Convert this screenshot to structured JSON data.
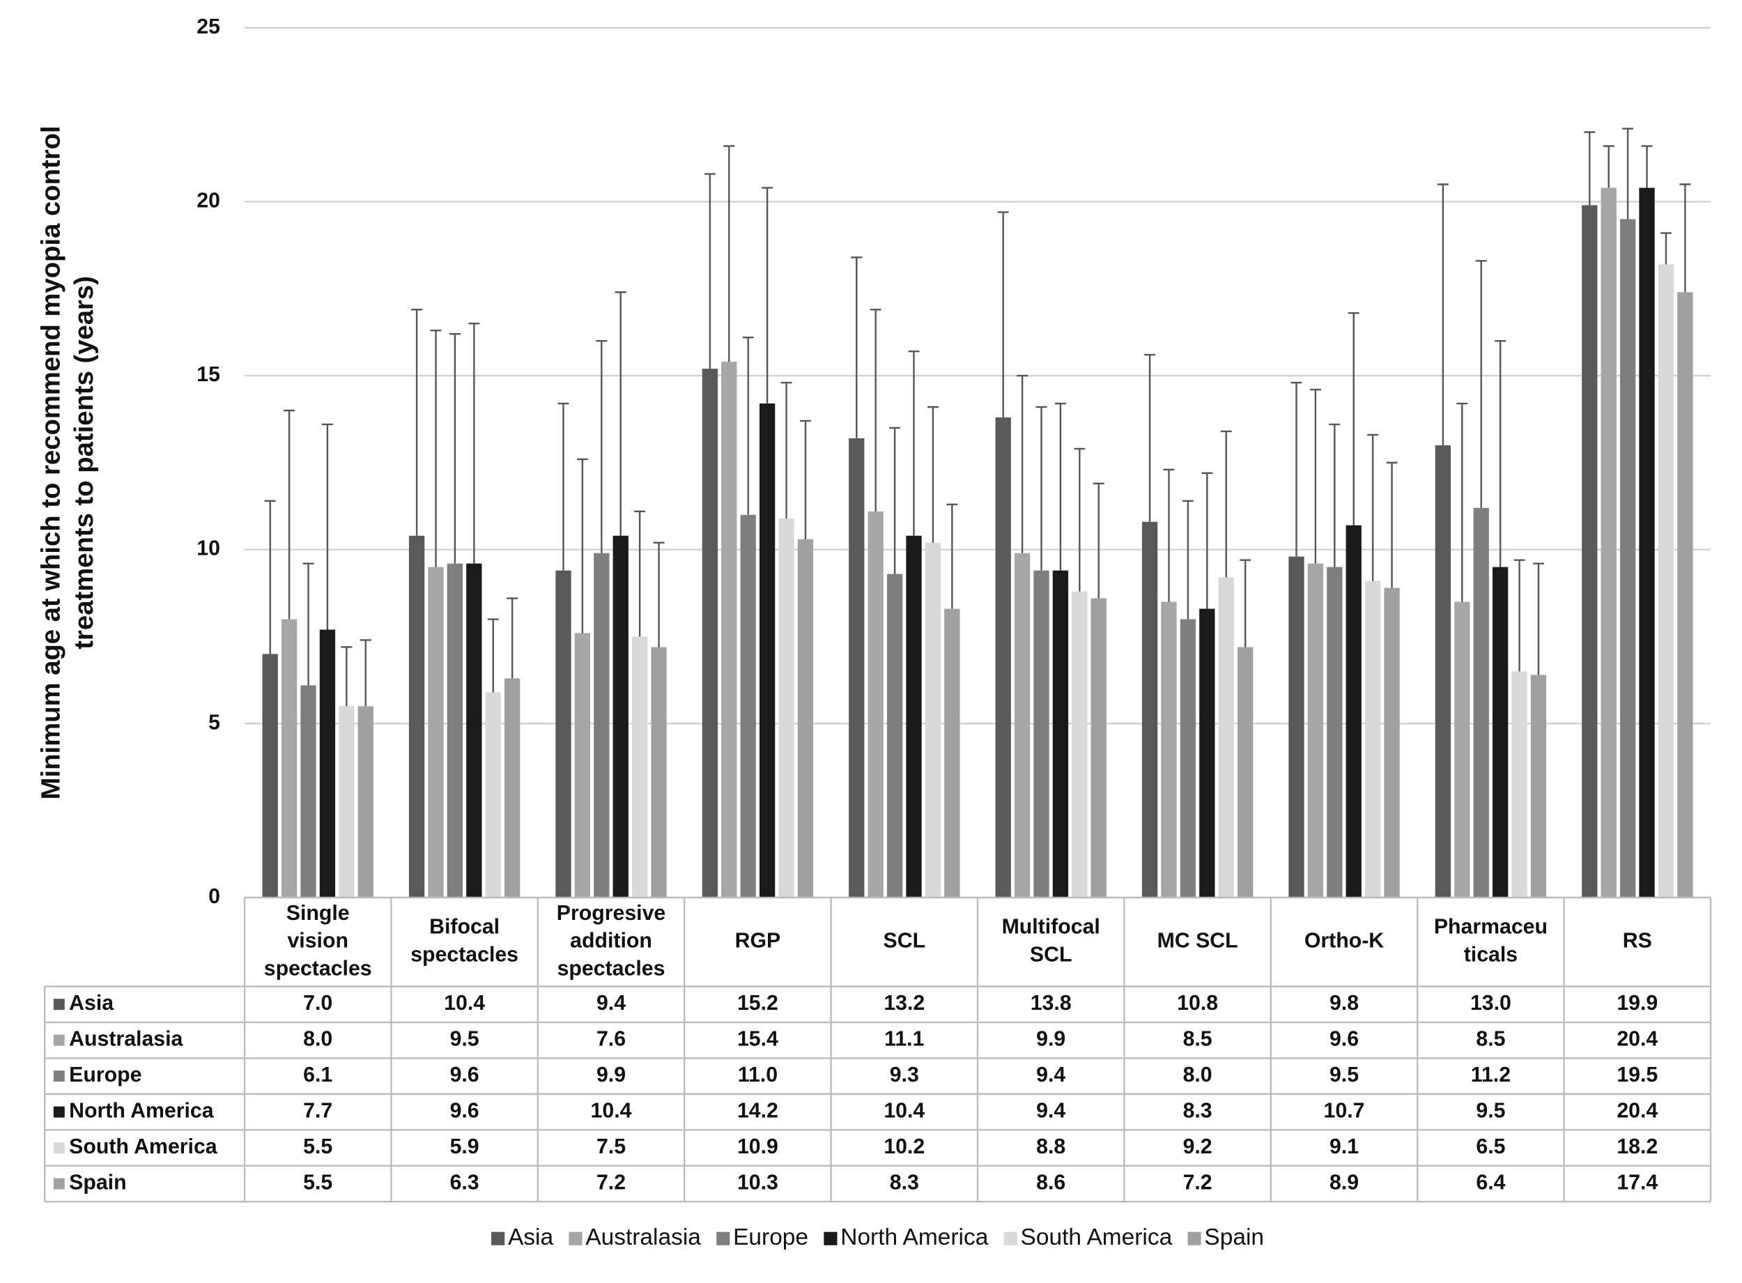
{
  "chart_data": {
    "type": "bar",
    "y_label": [
      "Minimum age at which to recommend myopia control",
      "treatments to patients (years)"
    ],
    "categories": [
      [
        "Single",
        "vision",
        "spectacles"
      ],
      [
        "Bifocal",
        "spectacles"
      ],
      [
        "Progresive",
        "addition",
        "spectacles"
      ],
      [
        "RGP"
      ],
      [
        "SCL"
      ],
      [
        "Multifocal",
        "SCL"
      ],
      [
        "MC SCL"
      ],
      [
        "Ortho-K"
      ],
      [
        "Pharmaceu",
        "ticals"
      ],
      [
        "RS"
      ]
    ],
    "series": [
      {
        "name": "Asia",
        "color": "#595959",
        "values": [
          7.0,
          10.4,
          9.4,
          15.2,
          13.2,
          13.8,
          10.8,
          9.8,
          13.0,
          19.9
        ],
        "value_labels": [
          "7.0",
          "10.4",
          "9.4",
          "15.2",
          "13.2",
          "13.8",
          "10.8",
          "9.8",
          "13.0",
          "19.9"
        ],
        "errors": [
          4.4,
          6.5,
          4.8,
          5.6,
          5.2,
          5.9,
          4.8,
          5.0,
          7.5,
          2.1
        ]
      },
      {
        "name": "Australasia",
        "color": "#a6a6a6",
        "values": [
          8.0,
          9.5,
          7.6,
          15.4,
          11.1,
          9.9,
          8.5,
          9.6,
          8.5,
          20.4
        ],
        "value_labels": [
          "8.0",
          "9.5",
          "7.6",
          "15.4",
          "11.1",
          "9.9",
          "8.5",
          "9.6",
          "8.5",
          "20.4"
        ],
        "errors": [
          6.0,
          6.8,
          5.0,
          6.2,
          5.8,
          5.1,
          3.8,
          5.0,
          5.7,
          1.2
        ]
      },
      {
        "name": "Europe",
        "color": "#7f7f7f",
        "values": [
          6.1,
          9.6,
          9.9,
          11.0,
          9.3,
          9.4,
          8.0,
          9.5,
          11.2,
          19.5
        ],
        "value_labels": [
          "6.1",
          "9.6",
          "9.9",
          "11.0",
          "9.3",
          "9.4",
          "8.0",
          "9.5",
          "11.2",
          "19.5"
        ],
        "errors": [
          3.5,
          6.6,
          6.1,
          5.1,
          4.2,
          4.7,
          3.4,
          4.1,
          7.1,
          2.6
        ]
      },
      {
        "name": "North America",
        "color": "#1a1a1a",
        "values": [
          7.7,
          9.6,
          10.4,
          14.2,
          10.4,
          9.4,
          8.3,
          10.7,
          9.5,
          20.4
        ],
        "value_labels": [
          "7.7",
          "9.6",
          "10.4",
          "14.2",
          "10.4",
          "9.4",
          "8.3",
          "10.7",
          "9.5",
          "20.4"
        ],
        "errors": [
          5.9,
          6.9,
          7.0,
          6.2,
          5.3,
          4.8,
          3.9,
          6.1,
          6.5,
          1.2
        ]
      },
      {
        "name": "South America",
        "color": "#d9d9d9",
        "values": [
          5.5,
          5.9,
          7.5,
          10.9,
          10.2,
          8.8,
          9.2,
          9.1,
          6.5,
          18.2
        ],
        "value_labels": [
          "5.5",
          "5.9",
          "7.5",
          "10.9",
          "10.2",
          "8.8",
          "9.2",
          "9.1",
          "6.5",
          "18.2"
        ],
        "errors": [
          1.7,
          2.1,
          3.6,
          3.9,
          3.9,
          4.1,
          4.2,
          4.2,
          3.2,
          0.9
        ]
      },
      {
        "name": "Spain",
        "color": "#a0a0a0",
        "values": [
          5.5,
          6.3,
          7.2,
          10.3,
          8.3,
          8.6,
          7.2,
          8.9,
          6.4,
          17.4
        ],
        "value_labels": [
          "5.5",
          "6.3",
          "7.2",
          "10.3",
          "8.3",
          "8.6",
          "7.2",
          "8.9",
          "6.4",
          "17.4"
        ],
        "errors": [
          1.9,
          2.3,
          3.0,
          3.4,
          3.0,
          3.3,
          2.5,
          3.6,
          3.2,
          3.1
        ]
      }
    ],
    "ylim": [
      0,
      25
    ],
    "yticks": [
      0,
      5,
      10,
      15,
      20,
      25
    ],
    "grid": true
  }
}
